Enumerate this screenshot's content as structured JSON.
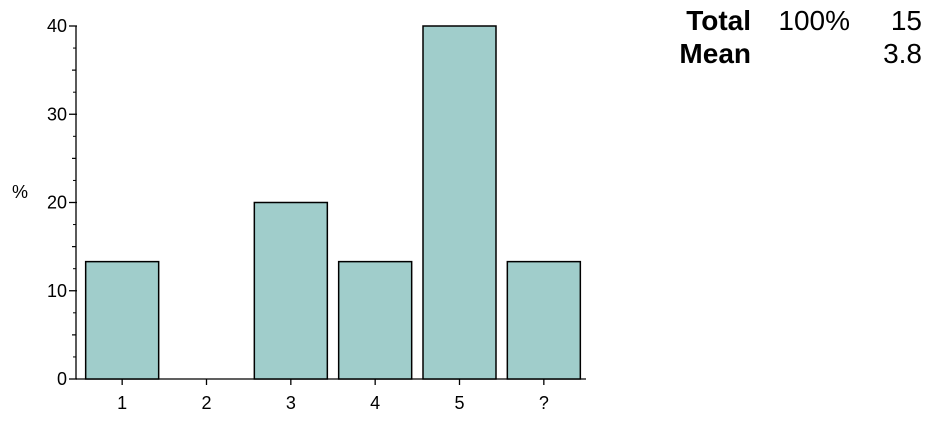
{
  "chart_data": {
    "type": "bar",
    "categories": [
      "1",
      "2",
      "3",
      "4",
      "5",
      "?"
    ],
    "values": [
      13.3,
      0,
      20,
      13.3,
      40,
      13.3
    ],
    "ylabel": "%",
    "xlabel": "",
    "ylim": [
      0,
      40
    ],
    "yticks": [
      0,
      10,
      20,
      30,
      40
    ],
    "grid": false,
    "bar_color": "#a0cdcb",
    "bar_edge_color": "#000000"
  },
  "summary": {
    "rows": [
      {
        "label": "Total",
        "percent": "100%",
        "value": "15"
      },
      {
        "label": "Mean",
        "percent": "",
        "value": "3.8"
      }
    ]
  }
}
